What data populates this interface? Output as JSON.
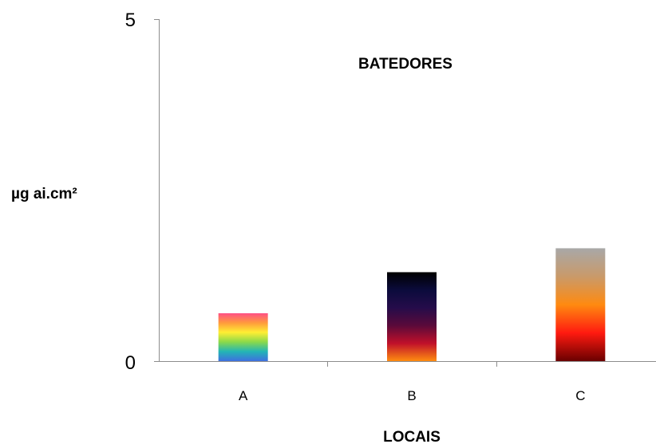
{
  "chart_data": {
    "type": "bar",
    "title": "BATEDORES",
    "xlabel": "LOCAIS",
    "ylabel": "µg ai.cm²",
    "categories": [
      "A",
      "B",
      "C"
    ],
    "series": [
      {
        "values": [
          0.7,
          1.3,
          1.65
        ]
      }
    ],
    "ylim": [
      0,
      5
    ],
    "yticks": [
      "0",
      "5"
    ],
    "grid": false,
    "bar_fills": [
      [
        "#ff4f86",
        "#ff9a3c",
        "#ffee33",
        "#8bd94a",
        "#23b5b5",
        "#3f6fe0"
      ],
      [
        "#000000",
        "#0b0b3c",
        "#250c4a",
        "#5a0a3a",
        "#c0102a",
        "#ff8c10"
      ],
      [
        "#a8a8a8",
        "#c99a6a",
        "#ff8a10",
        "#ff1a10",
        "#6a0000"
      ]
    ]
  }
}
